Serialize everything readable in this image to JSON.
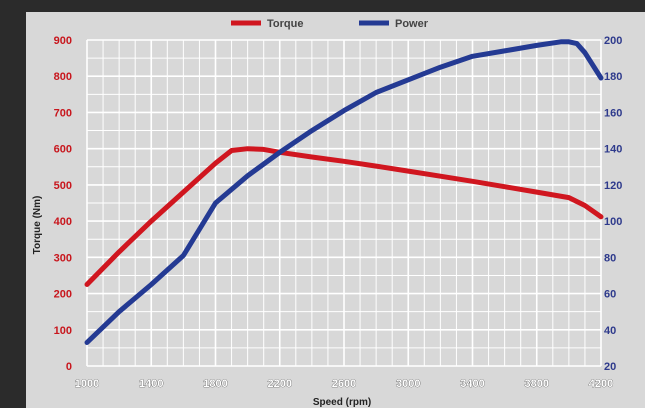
{
  "chart_data": {
    "type": "line",
    "xlabel": "Speed (rpm)",
    "ylabel_left": "Torque (Nm)",
    "x_ticks": [
      1000,
      1400,
      1800,
      2200,
      2600,
      3000,
      3400,
      3800,
      4200
    ],
    "xlim": [
      1000,
      4200
    ],
    "y_left_ticks": [
      0,
      100,
      200,
      300,
      400,
      500,
      600,
      700,
      800,
      900
    ],
    "y_left_lim": [
      0,
      900
    ],
    "y_right_ticks": [
      20,
      40,
      60,
      80,
      100,
      120,
      140,
      160,
      180,
      200
    ],
    "y_right_lim": [
      20,
      200
    ],
    "grid": true,
    "legend_position": "top",
    "series": [
      {
        "name": "Torque",
        "axis": "left",
        "color": "#d0161f",
        "x": [
          1000,
          1200,
          1400,
          1600,
          1800,
          1900,
          2000,
          2100,
          2200,
          2400,
          2600,
          2800,
          3000,
          3200,
          3400,
          3600,
          3800,
          4000,
          4100,
          4200
        ],
        "y": [
          225,
          315,
          400,
          480,
          560,
          595,
          600,
          598,
          590,
          577,
          565,
          552,
          538,
          524,
          510,
          495,
          480,
          465,
          443,
          412
        ]
      },
      {
        "name": "Power",
        "axis": "right",
        "color": "#243a93",
        "x": [
          1000,
          1200,
          1400,
          1600,
          1800,
          2000,
          2200,
          2400,
          2600,
          2800,
          3000,
          3200,
          3400,
          3600,
          3800,
          3950,
          4000,
          4050,
          4100,
          4200
        ],
        "y": [
          33,
          50,
          65,
          81,
          110,
          125,
          138,
          150,
          161,
          171,
          178,
          185,
          191,
          194,
          197,
          199,
          199,
          198,
          193,
          179
        ]
      }
    ]
  }
}
